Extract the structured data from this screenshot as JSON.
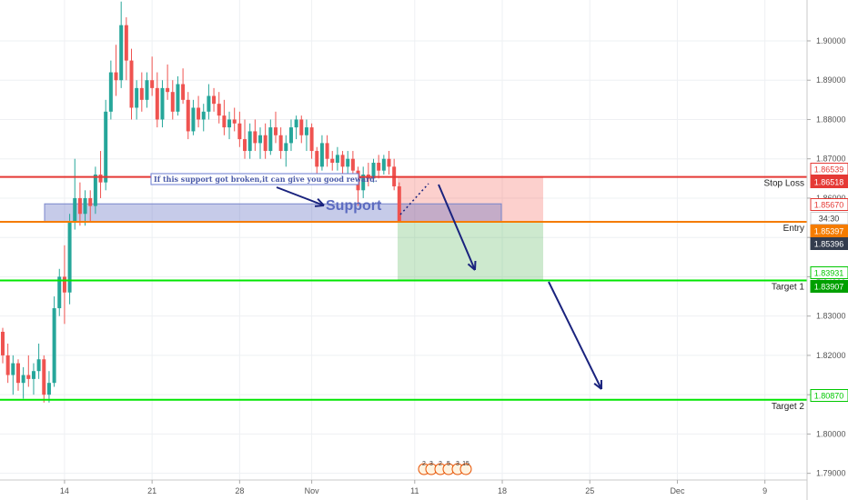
{
  "chart_data": {
    "type": "candlestick",
    "y_axis_ticks": [
      "1.79000",
      "1.80000",
      "1.81000",
      "1.82000",
      "1.83000",
      "1.84000",
      "1.85000",
      "1.86000",
      "1.87000",
      "1.88000",
      "1.89000",
      "1.90000"
    ],
    "x_axis_ticks": [
      {
        "label": "14",
        "i": 12
      },
      {
        "label": "21",
        "i": 29
      },
      {
        "label": "28",
        "i": 46
      },
      {
        "label": "Nov",
        "i": 60
      },
      {
        "label": "11",
        "i": 80
      },
      {
        "label": "18",
        "i": 97
      },
      {
        "label": "25",
        "i": 114
      },
      {
        "label": "Dec",
        "i": 131
      },
      {
        "label": "9",
        "i": 148
      }
    ],
    "ylim": [
      1.7883,
      1.9104
    ],
    "levels": {
      "stop_loss": {
        "label": "Stop Loss",
        "value": 1.86539,
        "color": "#e53935"
      },
      "entry": {
        "label": "Entry",
        "value": 1.85397,
        "color": "#f57c00"
      },
      "target_1": {
        "label": "Target 1",
        "value": 1.83907,
        "color": "#00e600"
      },
      "target_2": {
        "label": "Target 2",
        "value": 1.8087,
        "color": "#00e600"
      }
    },
    "price_tags": [
      {
        "text": "1.86539",
        "value": 1.86539,
        "bg": "#ffffff",
        "fg": "#e53935",
        "border": "#e53935"
      },
      {
        "text": "1.86518",
        "value": 1.86518,
        "bg": "#e53935",
        "fg": "#ffffff",
        "border": "#e53935"
      },
      {
        "text": "1.85670",
        "value": 1.8567,
        "bg": "#ffffff",
        "fg": "#e53935",
        "border": "#e53935"
      },
      {
        "text": "34:30",
        "value": 1.8546,
        "bg": "#ffffff",
        "fg": "#333333",
        "border": "#cccccc"
      },
      {
        "text": "1.85397",
        "value": 1.85397,
        "bg": "#f57c00",
        "fg": "#ffffff",
        "border": "#f57c00"
      },
      {
        "text": "1.85396",
        "value": 1.85396,
        "bg": "#333c4e",
        "fg": "#ffffff",
        "border": "#333c4e"
      },
      {
        "text": "1.83931",
        "value": 1.83931,
        "bg": "#ffffff",
        "fg": "#00c800",
        "border": "#00c800"
      },
      {
        "text": "1.83907",
        "value": 1.83907,
        "bg": "#00a000",
        "fg": "#ffffff",
        "border": "#00a000"
      },
      {
        "text": "1.80870",
        "value": 1.8087,
        "bg": "#ffffff",
        "fg": "#00c800",
        "border": "#00c800"
      }
    ],
    "support_zone": {
      "label": "Support",
      "from": 1.85397,
      "to": 1.8567
    },
    "annotation": "If this support got broken,it can give you good reward.",
    "trade_box": {
      "stop": 1.86539,
      "entry": 1.85397,
      "target": 1.83907
    },
    "event_icons": [
      "2",
      "3",
      "2",
      "5",
      "3",
      "15"
    ],
    "candles": [
      {
        "o": 1.826,
        "h": 1.827,
        "l": 1.818,
        "c": 1.82
      },
      {
        "o": 1.82,
        "h": 1.823,
        "l": 1.813,
        "c": 1.815
      },
      {
        "o": 1.815,
        "h": 1.82,
        "l": 1.81,
        "c": 1.818
      },
      {
        "o": 1.818,
        "h": 1.819,
        "l": 1.811,
        "c": 1.813
      },
      {
        "o": 1.813,
        "h": 1.817,
        "l": 1.809,
        "c": 1.815
      },
      {
        "o": 1.815,
        "h": 1.82,
        "l": 1.812,
        "c": 1.814
      },
      {
        "o": 1.814,
        "h": 1.818,
        "l": 1.81,
        "c": 1.816
      },
      {
        "o": 1.816,
        "h": 1.823,
        "l": 1.814,
        "c": 1.819
      },
      {
        "o": 1.819,
        "h": 1.82,
        "l": 1.808,
        "c": 1.81
      },
      {
        "o": 1.81,
        "h": 1.816,
        "l": 1.808,
        "c": 1.813
      },
      {
        "o": 1.813,
        "h": 1.835,
        "l": 1.812,
        "c": 1.832
      },
      {
        "o": 1.832,
        "h": 1.842,
        "l": 1.83,
        "c": 1.84
      },
      {
        "o": 1.84,
        "h": 1.848,
        "l": 1.828,
        "c": 1.836
      },
      {
        "o": 1.836,
        "h": 1.856,
        "l": 1.833,
        "c": 1.854
      },
      {
        "o": 1.854,
        "h": 1.87,
        "l": 1.852,
        "c": 1.86
      },
      {
        "o": 1.86,
        "h": 1.864,
        "l": 1.853,
        "c": 1.856
      },
      {
        "o": 1.856,
        "h": 1.862,
        "l": 1.853,
        "c": 1.86
      },
      {
        "o": 1.86,
        "h": 1.862,
        "l": 1.854,
        "c": 1.858
      },
      {
        "o": 1.858,
        "h": 1.868,
        "l": 1.856,
        "c": 1.866
      },
      {
        "o": 1.866,
        "h": 1.872,
        "l": 1.86,
        "c": 1.864
      },
      {
        "o": 1.864,
        "h": 1.885,
        "l": 1.862,
        "c": 1.882
      },
      {
        "o": 1.882,
        "h": 1.895,
        "l": 1.88,
        "c": 1.892
      },
      {
        "o": 1.892,
        "h": 1.899,
        "l": 1.886,
        "c": 1.89
      },
      {
        "o": 1.89,
        "h": 1.91,
        "l": 1.888,
        "c": 1.904
      },
      {
        "o": 1.904,
        "h": 1.906,
        "l": 1.89,
        "c": 1.895
      },
      {
        "o": 1.895,
        "h": 1.898,
        "l": 1.88,
        "c": 1.883
      },
      {
        "o": 1.883,
        "h": 1.89,
        "l": 1.88,
        "c": 1.888
      },
      {
        "o": 1.888,
        "h": 1.892,
        "l": 1.882,
        "c": 1.885
      },
      {
        "o": 1.885,
        "h": 1.892,
        "l": 1.883,
        "c": 1.89
      },
      {
        "o": 1.89,
        "h": 1.896,
        "l": 1.886,
        "c": 1.888
      },
      {
        "o": 1.888,
        "h": 1.892,
        "l": 1.878,
        "c": 1.88
      },
      {
        "o": 1.88,
        "h": 1.89,
        "l": 1.878,
        "c": 1.888
      },
      {
        "o": 1.888,
        "h": 1.894,
        "l": 1.885,
        "c": 1.887
      },
      {
        "o": 1.887,
        "h": 1.89,
        "l": 1.88,
        "c": 1.882
      },
      {
        "o": 1.882,
        "h": 1.891,
        "l": 1.881,
        "c": 1.889
      },
      {
        "o": 1.889,
        "h": 1.893,
        "l": 1.884,
        "c": 1.885
      },
      {
        "o": 1.885,
        "h": 1.887,
        "l": 1.875,
        "c": 1.877
      },
      {
        "o": 1.877,
        "h": 1.885,
        "l": 1.876,
        "c": 1.883
      },
      {
        "o": 1.883,
        "h": 1.886,
        "l": 1.878,
        "c": 1.88
      },
      {
        "o": 1.88,
        "h": 1.884,
        "l": 1.877,
        "c": 1.882
      },
      {
        "o": 1.882,
        "h": 1.889,
        "l": 1.88,
        "c": 1.886
      },
      {
        "o": 1.886,
        "h": 1.888,
        "l": 1.882,
        "c": 1.884
      },
      {
        "o": 1.884,
        "h": 1.887,
        "l": 1.879,
        "c": 1.881
      },
      {
        "o": 1.881,
        "h": 1.885,
        "l": 1.876,
        "c": 1.878
      },
      {
        "o": 1.878,
        "h": 1.882,
        "l": 1.875,
        "c": 1.88
      },
      {
        "o": 1.88,
        "h": 1.883,
        "l": 1.877,
        "c": 1.879
      },
      {
        "o": 1.879,
        "h": 1.882,
        "l": 1.873,
        "c": 1.875
      },
      {
        "o": 1.875,
        "h": 1.88,
        "l": 1.87,
        "c": 1.872
      },
      {
        "o": 1.872,
        "h": 1.879,
        "l": 1.87,
        "c": 1.877
      },
      {
        "o": 1.877,
        "h": 1.88,
        "l": 1.872,
        "c": 1.874
      },
      {
        "o": 1.874,
        "h": 1.878,
        "l": 1.87,
        "c": 1.876
      },
      {
        "o": 1.876,
        "h": 1.879,
        "l": 1.87,
        "c": 1.872
      },
      {
        "o": 1.872,
        "h": 1.88,
        "l": 1.871,
        "c": 1.878
      },
      {
        "o": 1.878,
        "h": 1.882,
        "l": 1.874,
        "c": 1.876
      },
      {
        "o": 1.876,
        "h": 1.878,
        "l": 1.87,
        "c": 1.872
      },
      {
        "o": 1.872,
        "h": 1.876,
        "l": 1.868,
        "c": 1.874
      },
      {
        "o": 1.874,
        "h": 1.88,
        "l": 1.872,
        "c": 1.878
      },
      {
        "o": 1.878,
        "h": 1.881,
        "l": 1.875,
        "c": 1.88
      },
      {
        "o": 1.88,
        "h": 1.881,
        "l": 1.874,
        "c": 1.876
      },
      {
        "o": 1.876,
        "h": 1.88,
        "l": 1.872,
        "c": 1.878
      },
      {
        "o": 1.878,
        "h": 1.879,
        "l": 1.87,
        "c": 1.872
      },
      {
        "o": 1.872,
        "h": 1.873,
        "l": 1.866,
        "c": 1.868
      },
      {
        "o": 1.868,
        "h": 1.876,
        "l": 1.867,
        "c": 1.874
      },
      {
        "o": 1.874,
        "h": 1.876,
        "l": 1.868,
        "c": 1.87
      },
      {
        "o": 1.87,
        "h": 1.872,
        "l": 1.867,
        "c": 1.869
      },
      {
        "o": 1.869,
        "h": 1.873,
        "l": 1.867,
        "c": 1.871
      },
      {
        "o": 1.871,
        "h": 1.872,
        "l": 1.866,
        "c": 1.868
      },
      {
        "o": 1.868,
        "h": 1.872,
        "l": 1.865,
        "c": 1.87
      },
      {
        "o": 1.87,
        "h": 1.872,
        "l": 1.866,
        "c": 1.867
      },
      {
        "o": 1.867,
        "h": 1.868,
        "l": 1.858,
        "c": 1.862
      },
      {
        "o": 1.862,
        "h": 1.868,
        "l": 1.86,
        "c": 1.866
      },
      {
        "o": 1.866,
        "h": 1.869,
        "l": 1.863,
        "c": 1.865
      },
      {
        "o": 1.865,
        "h": 1.87,
        "l": 1.864,
        "c": 1.869
      },
      {
        "o": 1.869,
        "h": 1.871,
        "l": 1.865,
        "c": 1.867
      },
      {
        "o": 1.867,
        "h": 1.871,
        "l": 1.866,
        "c": 1.87
      },
      {
        "o": 1.87,
        "h": 1.872,
        "l": 1.866,
        "c": 1.868
      },
      {
        "o": 1.868,
        "h": 1.87,
        "l": 1.862,
        "c": 1.863
      },
      {
        "o": 1.863,
        "h": 1.864,
        "l": 1.854,
        "c": 1.854
      }
    ]
  }
}
